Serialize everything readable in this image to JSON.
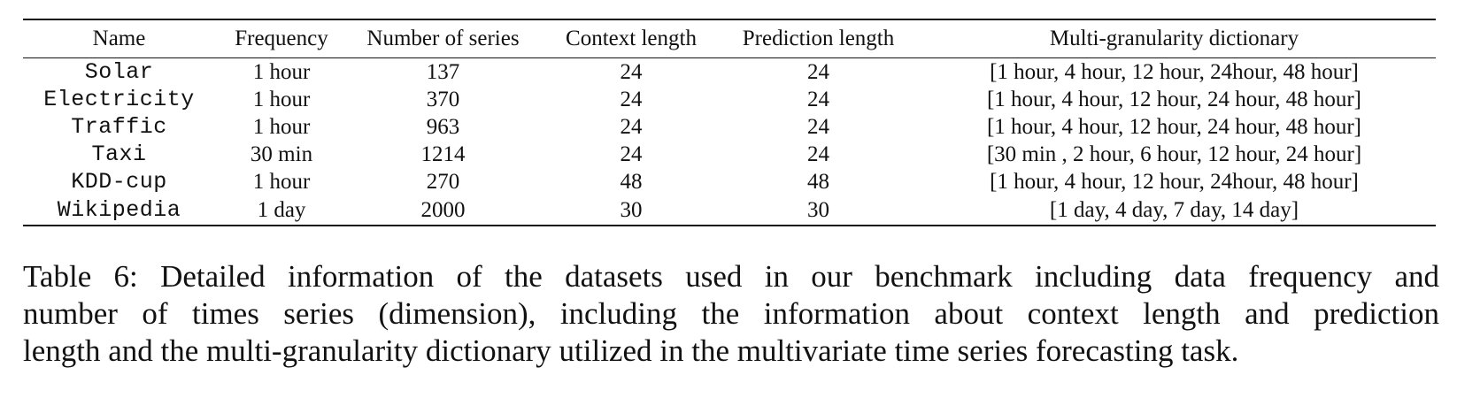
{
  "table": {
    "headers": [
      "Name",
      "Frequency",
      "Number of series",
      "Context length",
      "Prediction length",
      "Multi-granularity dictionary"
    ],
    "rows": [
      [
        "Solar",
        "1 hour",
        "137",
        "24",
        "24",
        "[1 hour, 4 hour, 12 hour, 24hour, 48 hour]"
      ],
      [
        "Electricity",
        "1 hour",
        "370",
        "24",
        "24",
        "[1 hour, 4 hour, 12 hour, 24 hour, 48 hour]"
      ],
      [
        "Traffic",
        "1 hour",
        "963",
        "24",
        "24",
        "[1 hour, 4 hour, 12 hour, 24 hour, 48 hour]"
      ],
      [
        "Taxi",
        "30 min",
        "1214",
        "24",
        "24",
        "[30 min , 2 hour, 6 hour, 12 hour, 24 hour]"
      ],
      [
        "KDD-cup",
        "1 hour",
        "270",
        "48",
        "48",
        "[1 hour, 4 hour, 12 hour, 24hour, 48 hour]"
      ],
      [
        "Wikipedia",
        "1 day",
        "2000",
        "30",
        "30",
        "[1 day, 4 day, 7 day, 14 day]"
      ]
    ]
  },
  "caption": {
    "lines": [
      "Table 6: Detailed information of the datasets used in our benchmark including data frequency and",
      "number of times series (dimension), including the information about context length and prediction",
      "length and the multi-granularity dictionary utilized in the multivariate time series forecasting task."
    ]
  }
}
